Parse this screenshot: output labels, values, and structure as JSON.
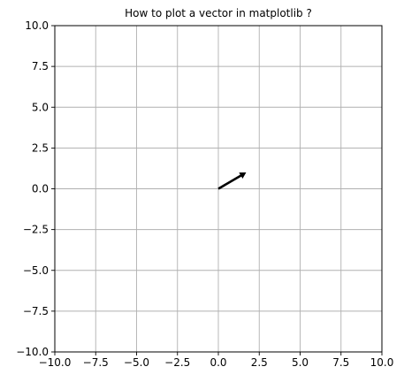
{
  "chart_data": {
    "type": "quiver",
    "title": "How to plot a vector in matplotlib ?",
    "xlabel": "",
    "ylabel": "",
    "xlim": [
      -10,
      10
    ],
    "ylim": [
      -10,
      10
    ],
    "x_ticks": [
      -10,
      -7.5,
      -5,
      -2.5,
      0,
      2.5,
      5,
      7.5,
      10
    ],
    "y_ticks": [
      -10,
      -7.5,
      -5,
      -2.5,
      0,
      2.5,
      5,
      7.5,
      10
    ],
    "x_tick_labels": [
      "−10.0",
      "−7.5",
      "−5.0",
      "−2.5",
      "0.0",
      "2.5",
      "5.0",
      "7.5",
      "10.0"
    ],
    "y_tick_labels": [
      "−10.0",
      "−7.5",
      "−5.0",
      "−2.5",
      "0.0",
      "2.5",
      "5.0",
      "7.5",
      "10.0"
    ],
    "grid": true,
    "vectors": [
      {
        "x": 0,
        "y": 0,
        "dx": 1.7,
        "dy": 1.0,
        "color": "#000000"
      }
    ]
  }
}
